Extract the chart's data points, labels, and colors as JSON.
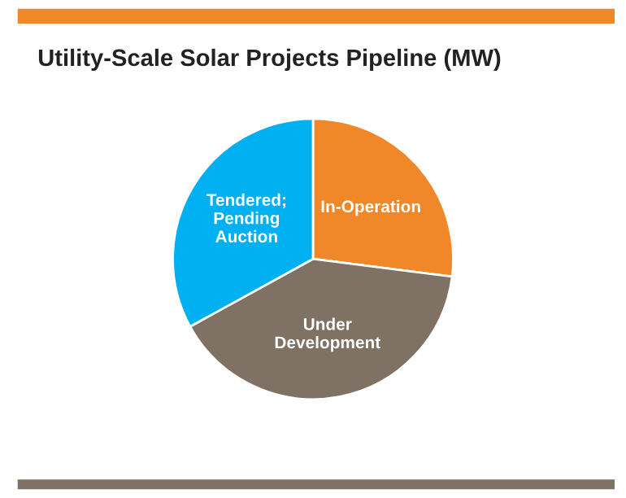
{
  "chart_data": {
    "type": "pie",
    "title": "Utility-Scale Solar Projects Pipeline (MW)",
    "categories": [
      "In-Operation",
      "Under\nDevelopment",
      "Tendered;\nPending\nAuction"
    ],
    "values": [
      27,
      40,
      33
    ],
    "colors": [
      "#f0882a",
      "#7f7264",
      "#00b0f0"
    ],
    "legend": false
  }
}
